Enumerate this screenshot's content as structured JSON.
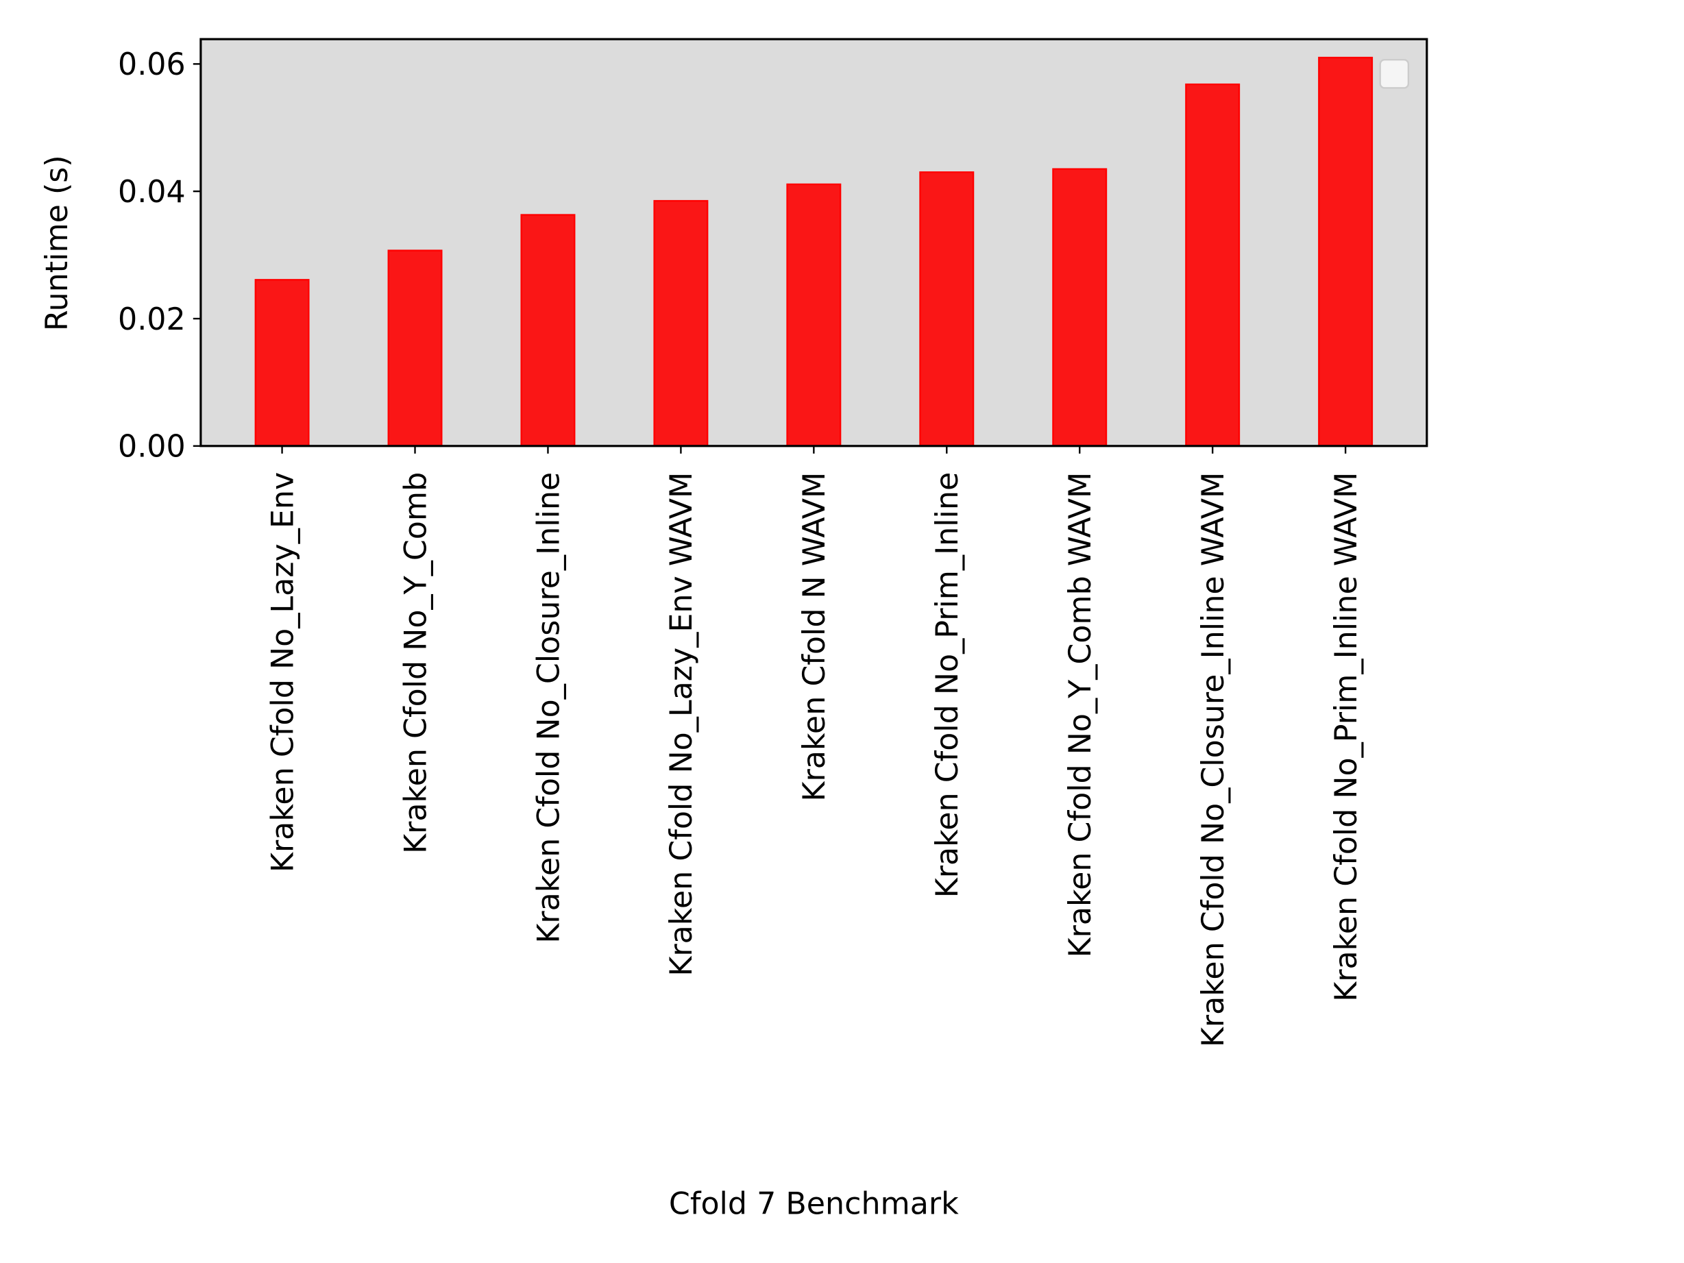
{
  "chart_data": {
    "type": "bar",
    "title": "",
    "xlabel": "Cfold 7 Benchmark",
    "ylabel": "Runtime (s)",
    "categories": [
      "Kraken Cfold No_Lazy_Env",
      "Kraken Cfold No_Y_Comb",
      "Kraken Cfold No_Closure_Inline",
      "Kraken Cfold No_Lazy_Env WAVM",
      "Kraken Cfold N WAVM",
      "Kraken Cfold No_Prim_Inline",
      "Kraken Cfold No_Y_Comb WAVM",
      "Kraken Cfold No_Closure_Inline WAVM",
      "Kraken Cfold No_Prim_Inline WAVM"
    ],
    "values": [
      0.0261,
      0.0307,
      0.0363,
      0.0385,
      0.0411,
      0.043,
      0.0435,
      0.0568,
      0.061
    ],
    "ylim": [
      0,
      0.0639
    ],
    "yticks": [
      "0.00",
      "0.02",
      "0.04",
      "0.06"
    ],
    "ytick_values": [
      0,
      0.02,
      0.04,
      0.06
    ],
    "bar_color": "#fa1616",
    "background_color": "#dcdcdc",
    "grid": false,
    "legend": "top-right (empty)"
  }
}
